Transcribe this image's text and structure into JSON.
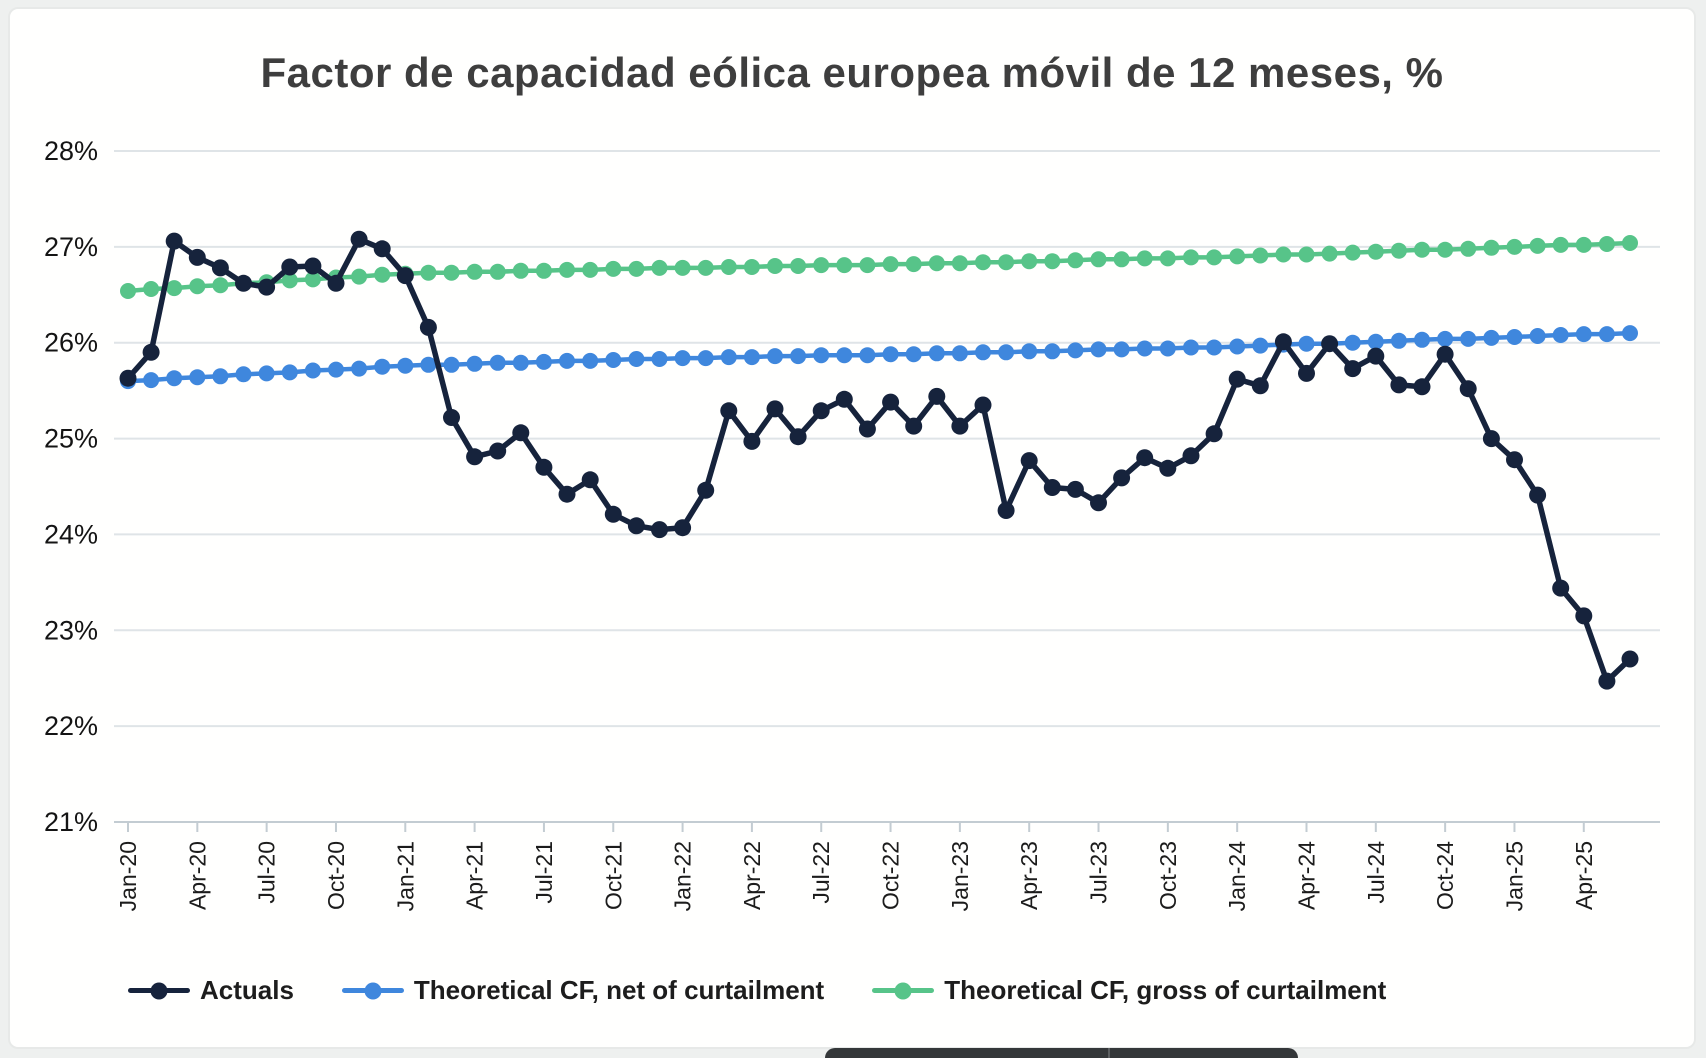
{
  "title": "Factor de capacidad eólica europea móvil de 12 meses, %",
  "chart_data": {
    "type": "line",
    "title": "Factor de capacidad eólica europea móvil de 12 meses, %",
    "unit": "%",
    "grid": "horizontal",
    "legend_position": "bottom",
    "y_axis": {
      "min": 21,
      "max": 28,
      "tick_step": 1,
      "tick_labels": [
        "28%",
        "27%",
        "26%",
        "25%",
        "24%",
        "23%",
        "22%",
        "21%"
      ]
    },
    "x_axis": {
      "tick_every": 3,
      "tick_labels": [
        "Jan-20",
        "Apr-20",
        "Jul-20",
        "Oct-20",
        "Jan-21",
        "Apr-21",
        "Jul-21",
        "Oct-21",
        "Jan-22",
        "Apr-22",
        "Jul-22",
        "Oct-22",
        "Jan-23",
        "Apr-23",
        "Jul-23",
        "Oct-23",
        "Jan-24",
        "Apr-24",
        "Jul-24",
        "Oct-24",
        "Jan-25",
        "Apr-25"
      ],
      "months": [
        "Jan-20",
        "Feb-20",
        "Mar-20",
        "Apr-20",
        "May-20",
        "Jun-20",
        "Jul-20",
        "Aug-20",
        "Sep-20",
        "Oct-20",
        "Nov-20",
        "Dec-20",
        "Jan-21",
        "Feb-21",
        "Mar-21",
        "Apr-21",
        "May-21",
        "Jun-21",
        "Jul-21",
        "Aug-21",
        "Sep-21",
        "Oct-21",
        "Nov-21",
        "Dec-21",
        "Jan-22",
        "Feb-22",
        "Mar-22",
        "Apr-22",
        "May-22",
        "Jun-22",
        "Jul-22",
        "Aug-22",
        "Sep-22",
        "Oct-22",
        "Nov-22",
        "Dec-22",
        "Jan-23",
        "Feb-23",
        "Mar-23",
        "Apr-23",
        "May-23",
        "Jun-23",
        "Jul-23",
        "Aug-23",
        "Sep-23",
        "Oct-23",
        "Nov-23",
        "Dec-23",
        "Jan-24",
        "Feb-24",
        "Mar-24",
        "Apr-24",
        "May-24",
        "Jun-24",
        "Jul-24",
        "Aug-24",
        "Sep-24",
        "Oct-24",
        "Nov-24",
        "Dec-24",
        "Jan-25",
        "Feb-25",
        "Mar-25",
        "Apr-25",
        "May-25",
        "Jun-25"
      ]
    },
    "series": [
      {
        "name": "Actuals",
        "color": "#16233c",
        "marker": "circle",
        "values": [
          25.63,
          25.9,
          27.06,
          26.89,
          26.78,
          26.62,
          26.58,
          26.79,
          26.8,
          26.62,
          27.08,
          26.98,
          26.7,
          26.16,
          25.22,
          24.81,
          24.87,
          25.06,
          24.7,
          24.42,
          24.57,
          24.21,
          24.09,
          24.05,
          24.07,
          24.46,
          25.29,
          24.97,
          25.31,
          25.02,
          25.29,
          25.41,
          25.1,
          25.38,
          25.13,
          25.44,
          25.13,
          25.35,
          24.25,
          24.77,
          24.49,
          24.47,
          24.33,
          24.59,
          24.8,
          24.69,
          24.82,
          25.05,
          25.62,
          25.55,
          26.01,
          25.68,
          25.99,
          25.73,
          25.86,
          25.56,
          25.54,
          25.88,
          25.52,
          25.0,
          24.78,
          24.41,
          23.44,
          23.15,
          22.47,
          22.7
        ]
      },
      {
        "name": "Theoretical CF, net of curtailment",
        "color": "#3f87dd",
        "marker": "circle",
        "values": [
          25.6,
          25.61,
          25.63,
          25.64,
          25.65,
          25.67,
          25.68,
          25.69,
          25.71,
          25.72,
          25.73,
          25.75,
          25.76,
          25.77,
          25.77,
          25.78,
          25.79,
          25.79,
          25.8,
          25.81,
          25.81,
          25.82,
          25.83,
          25.83,
          25.84,
          25.84,
          25.85,
          25.85,
          25.86,
          25.86,
          25.87,
          25.87,
          25.87,
          25.88,
          25.88,
          25.89,
          25.89,
          25.9,
          25.9,
          25.91,
          25.91,
          25.92,
          25.93,
          25.93,
          25.94,
          25.94,
          25.95,
          25.95,
          25.96,
          25.97,
          25.98,
          25.99,
          25.99,
          26.0,
          26.01,
          26.02,
          26.03,
          26.04,
          26.04,
          26.05,
          26.06,
          26.07,
          26.08,
          26.09,
          26.09,
          26.1
        ]
      },
      {
        "name": "Theoretical CF, gross of curtailment",
        "color": "#57c489",
        "marker": "circle",
        "values": [
          26.54,
          26.56,
          26.57,
          26.59,
          26.6,
          26.62,
          26.63,
          26.65,
          26.66,
          26.68,
          26.69,
          26.71,
          26.72,
          26.73,
          26.73,
          26.74,
          26.74,
          26.75,
          26.75,
          26.76,
          26.76,
          26.77,
          26.77,
          26.78,
          26.78,
          26.78,
          26.79,
          26.79,
          26.8,
          26.8,
          26.81,
          26.81,
          26.81,
          26.82,
          26.82,
          26.83,
          26.83,
          26.84,
          26.84,
          26.85,
          26.85,
          26.86,
          26.87,
          26.87,
          26.88,
          26.88,
          26.89,
          26.89,
          26.9,
          26.91,
          26.92,
          26.92,
          26.93,
          26.94,
          26.95,
          26.96,
          26.97,
          26.97,
          26.98,
          26.99,
          27.0,
          27.01,
          27.02,
          27.02,
          27.03,
          27.04
        ]
      }
    ],
    "style": {
      "gridline_color": "#dfe4e7",
      "axis_color": "#c3ccd2",
      "tick_text_color": "#1c1c1c",
      "title_color": "#3e3e3e"
    }
  }
}
